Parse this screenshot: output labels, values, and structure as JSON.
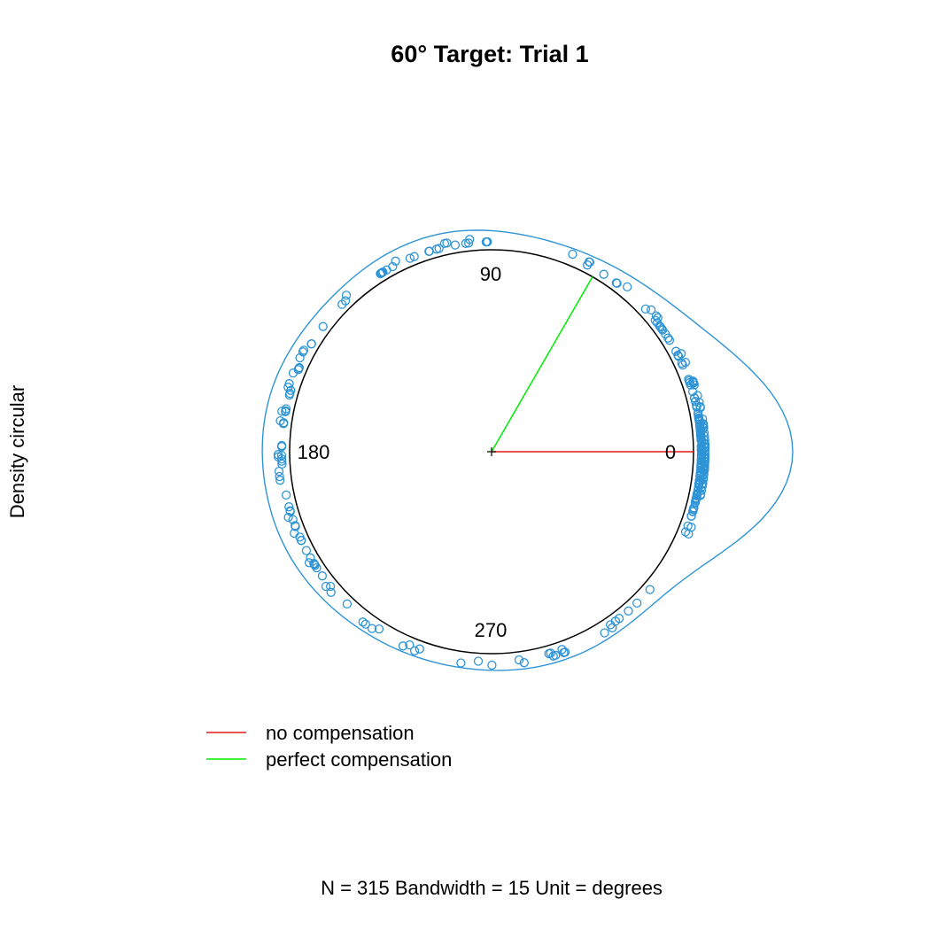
{
  "chart_data": {
    "type": "scatter",
    "subtype": "circular-density",
    "title": "60° Target: Trial 1",
    "ylabel": "Density circular",
    "xlabel": "N = 315   Bandwidth = 15  Unit = degrees",
    "angle_labels": [
      "0",
      "90",
      "180",
      "270"
    ],
    "angle_values": [
      0,
      90,
      180,
      270
    ],
    "n": 315,
    "bandwidth": 15,
    "unit": "degrees",
    "reference_lines": [
      {
        "name": "no compensation",
        "angle": 0,
        "color": "#e31a1c"
      },
      {
        "name": "perfect compensation",
        "angle": 60,
        "color": "#00ee00"
      }
    ],
    "legend_placement": "bottom-left",
    "colors": {
      "points": "#2e94d6",
      "density": "#2e94d6",
      "circle": "#000000"
    },
    "grid": false
  },
  "legend": [
    {
      "label": "no compensation",
      "color": "#e31a1c"
    },
    {
      "label": "perfect compensation",
      "color": "#00ee00"
    }
  ]
}
